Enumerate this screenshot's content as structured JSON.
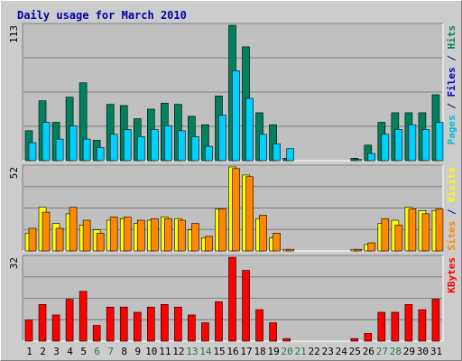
{
  "chart_data": {
    "type": "bar",
    "title": "Daily usage for March 2010",
    "categories": [
      "1",
      "2",
      "3",
      "4",
      "5",
      "6",
      "7",
      "8",
      "9",
      "10",
      "11",
      "12",
      "13",
      "14",
      "15",
      "16",
      "17",
      "18",
      "19",
      "20",
      "21",
      "22",
      "23",
      "24",
      "25",
      "26",
      "27",
      "28",
      "29",
      "30",
      "31"
    ],
    "weekend_days": [
      "6",
      "7",
      "13",
      "14",
      "20",
      "21",
      "27",
      "28"
    ],
    "colors": {
      "title": "#0000aa",
      "plot_bg": "#c0c0c0",
      "grid": "#808080",
      "tick": "#000000",
      "tick_weekend": "#1f7a4a",
      "hits": "#00805c",
      "files": "#00d0ff",
      "pages": "#00d0ff",
      "visits": "#ffff00",
      "sites": "#ff8800",
      "kbytes": "#ff0000"
    },
    "panels": [
      {
        "id": "hits-files-pages",
        "scale_label": "113",
        "max": 113,
        "legend": [
          {
            "text": "Pages",
            "color": "#00bbdd"
          },
          {
            "text": " / ",
            "color": "#000080"
          },
          {
            "text": "Files",
            "color": "#0000cc"
          },
          {
            "text": " / ",
            "color": "#000080"
          },
          {
            "text": "Hits",
            "color": "#00805c"
          }
        ],
        "series": [
          {
            "name": "Hits",
            "color": "#00805c",
            "values": [
              25,
              50,
              32,
              53,
              65,
              17,
              47,
              46,
              35,
              43,
              48,
              47,
              37,
              30,
              54,
              113,
              95,
              40,
              30,
              2,
              0,
              0,
              0,
              0,
              2,
              13,
              32,
              40,
              40,
              40,
              55
            ]
          },
          {
            "name": "Files",
            "color": "#00d0ff",
            "values": [
              15,
              32,
              18,
              29,
              18,
              11,
              22,
              26,
              20,
              26,
              29,
              25,
              20,
              12,
              38,
              75,
              52,
              22,
              14,
              10,
              0,
              0,
              0,
              0,
              1,
              6,
              22,
              26,
              30,
              26,
              32
            ]
          }
        ]
      },
      {
        "id": "visits-sites",
        "scale_label": "52",
        "max": 52,
        "legend": [
          {
            "text": "Sites",
            "color": "#ff8800"
          },
          {
            "text": " / ",
            "color": "#000080"
          },
          {
            "text": "Visits",
            "color": "#ffff00"
          }
        ],
        "series": [
          {
            "name": "Visits",
            "color": "#ffff00",
            "values": [
              11,
              27,
              17,
              23,
              16,
              13,
              19,
              20,
              17,
              19,
              21,
              20,
              13,
              8,
              26,
              52,
              47,
              20,
              8,
              1,
              0,
              0,
              0,
              0,
              1,
              4,
              17,
              19,
              27,
              25,
              25
            ]
          },
          {
            "name": "Sites",
            "color": "#ff8800",
            "values": [
              14,
              24,
              14,
              27,
              19,
              11,
              21,
              21,
              19,
              20,
              20,
              19,
              17,
              9,
              26,
              51,
              46,
              22,
              11,
              1,
              0,
              0,
              0,
              0,
              1,
              5,
              20,
              16,
              26,
              23,
              26
            ]
          }
        ]
      },
      {
        "id": "kbytes",
        "scale_label": "32",
        "max": 32,
        "legend": [
          {
            "text": "KBytes",
            "color": "#ff0000"
          }
        ],
        "series": [
          {
            "name": "KBytes",
            "color": "#ff0000",
            "values": [
              8,
              14,
              10,
              16,
              19,
              6,
              13,
              13,
              11,
              13,
              14,
              13,
              10,
              7,
              15,
              32,
              27,
              12,
              7,
              1,
              0,
              0,
              0,
              0,
              1,
              3,
              11,
              11,
              14,
              12,
              16
            ]
          }
        ]
      }
    ]
  }
}
